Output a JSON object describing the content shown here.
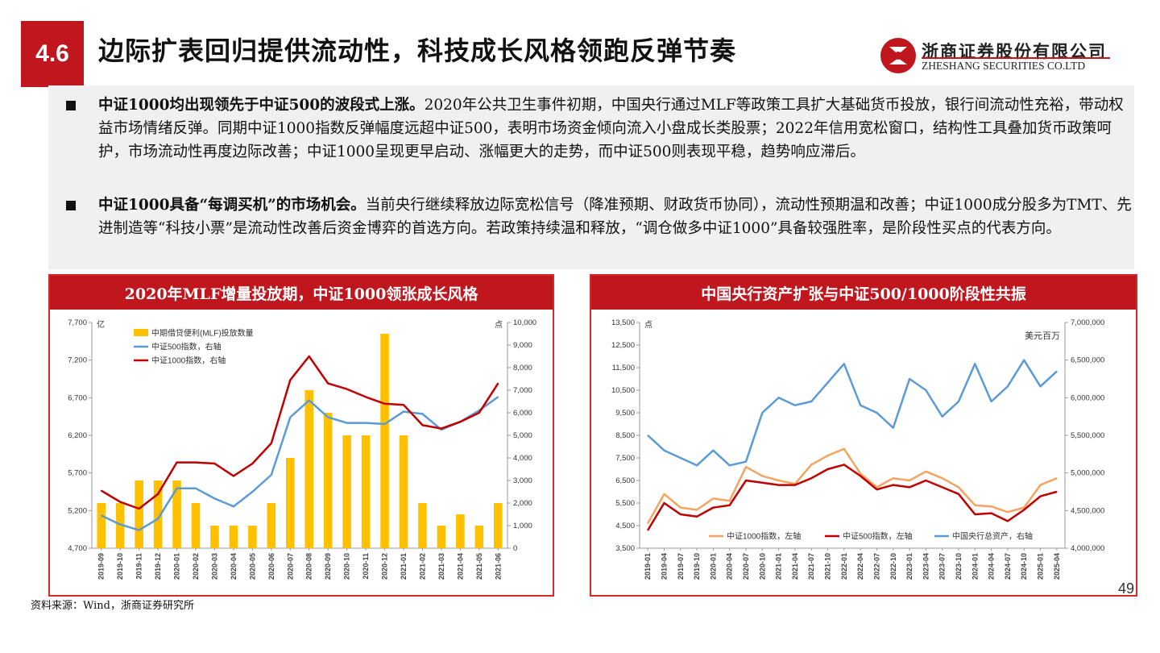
{
  "header": {
    "section_number": "4.6",
    "title": "边际扩表回归提供流动性，科技成长风格领跑反弹节奏",
    "brand_cn": "浙商证券股份有限公司",
    "brand_en": "ZHESHANG SECURITIES CO.LTD"
  },
  "bullets": [
    {
      "lead": "中证1000均出现领先于中证500的波段式上涨。",
      "body": "2020年公共卫生事件初期，中国央行通过MLF等政策工具扩大基础货币投放，银行间流动性充裕，带动权益市场情绪反弹。同期中证1000指数反弹幅度远超中证500，表明市场资金倾向流入小盘成长类股票；2022年信用宽松窗口，结构性工具叠加货币政策呵护，市场流动性再度边际改善；中证1000呈现更早启动、涨幅更大的走势，而中证500则表现平稳，趋势响应滞后。"
    },
    {
      "lead": "中证1000具备“每调买机”的市场机会。",
      "body": "当前央行继续释放边际宽松信号（降准预期、财政货币协同），流动性预期温和改善；中证1000成分股多为TMT、先进制造等“科技小票”是流动性改善后资金博弈的首选方向。若政策持续温和释放，“调仓做多中证1000”具备较强胜率，是阶段性买点的代表方向。"
    }
  ],
  "source_note": "资料来源：Wind，浙商证券研究所",
  "page_number": "49",
  "colors": {
    "accent": "#c0161e",
    "bar": "#ffc000",
    "line_blue": "#5b9bd5",
    "line_red": "#c00000",
    "line_orange": "#f4a460"
  },
  "chart_data": [
    {
      "type": "bar",
      "title": "2020年MLF增量投放期，中证1000领张成长风格",
      "left_unit": "亿",
      "right_unit": "点",
      "categories": [
        "2019-09",
        "2019-10",
        "2019-11",
        "2019-12",
        "2020-01",
        "2020-02",
        "2020-03",
        "2020-04",
        "2020-05",
        "2020-06",
        "2020-07",
        "2020-08",
        "2020-09",
        "2020-10",
        "2020-11",
        "2020-12",
        "2021-01",
        "2021-02",
        "2021-03",
        "2021-04",
        "2021-05",
        "2021-06"
      ],
      "left_ylim": [
        4700,
        7700
      ],
      "left_ticks": [
        "4,700",
        "5,200",
        "5,700",
        "6,200",
        "6,700",
        "7,200",
        "7,700"
      ],
      "right_ylim": [
        0,
        10000
      ],
      "right_ticks": [
        "0",
        "1,000",
        "2,000",
        "3,000",
        "4,000",
        "5,000",
        "6,000",
        "7,000",
        "8,000",
        "9,000",
        "10,000"
      ],
      "series": [
        {
          "name": "中期借贷便利(MLF)投放数量",
          "type": "bar",
          "axis": "left",
          "values": [
            5300,
            5300,
            5600,
            5600,
            5600,
            5300,
            5000,
            5000,
            5000,
            5300,
            5900,
            6800,
            6500,
            6200,
            6200,
            7550,
            6200,
            5300,
            5000,
            5150,
            5000,
            5300
          ]
        },
        {
          "name": "中证500指数，右轴",
          "type": "line",
          "axis": "right",
          "values": [
            1450,
            1050,
            800,
            1300,
            2650,
            2650,
            2200,
            1850,
            2500,
            3250,
            5800,
            6550,
            5800,
            5550,
            5550,
            5500,
            6050,
            5950,
            5250,
            5600,
            6100,
            6700
          ]
        },
        {
          "name": "中证1000指数，右轴",
          "type": "line",
          "axis": "right",
          "values": [
            2550,
            2050,
            1750,
            2400,
            3800,
            3800,
            3750,
            3200,
            3750,
            4650,
            7450,
            8500,
            7300,
            7050,
            6700,
            6400,
            6350,
            5450,
            5300,
            5600,
            6000,
            7300
          ]
        }
      ]
    },
    {
      "type": "line",
      "title": "中国央行资产扩张与中证500/1000阶段性共振",
      "left_unit": "点",
      "right_unit": "美元百万",
      "categories": [
        "2019-01",
        "2019-04",
        "2019-07",
        "2019-10",
        "2020-01",
        "2020-04",
        "2020-07",
        "2020-10",
        "2021-01",
        "2021-04",
        "2021-07",
        "2021-10",
        "2022-01",
        "2022-04",
        "2022-07",
        "2022-10",
        "2023-01",
        "2023-04",
        "2023-07",
        "2023-10",
        "2024-01",
        "2024-04",
        "2024-07",
        "2024-10",
        "2025-01",
        "2025-04"
      ],
      "left_ylim": [
        3500,
        13500
      ],
      "left_ticks": [
        "3,500",
        "4,500",
        "5,500",
        "6,500",
        "7,500",
        "8,500",
        "9,500",
        "10,500",
        "11,500",
        "12,500",
        "13,500"
      ],
      "right_ylim": [
        4000000,
        7000000
      ],
      "right_ticks": [
        "4,000,000",
        "4,500,000",
        "5,000,000",
        "5,500,000",
        "6,000,000",
        "6,500,000",
        "7,000,000"
      ],
      "series": [
        {
          "name": "中证1000指数，左轴",
          "axis": "left",
          "values": [
            4600,
            5900,
            5300,
            5200,
            5700,
            5600,
            7100,
            6700,
            6500,
            6350,
            7200,
            7600,
            7900,
            6800,
            6200,
            6600,
            6500,
            6900,
            6600,
            6200,
            5400,
            5350,
            5100,
            5300,
            6300,
            6600
          ]
        },
        {
          "name": "中证500指数，左轴",
          "axis": "left",
          "values": [
            4300,
            5500,
            5000,
            4900,
            5300,
            5400,
            6500,
            6400,
            6300,
            6300,
            6600,
            7000,
            7200,
            6700,
            6100,
            6300,
            6200,
            6500,
            6200,
            5900,
            5000,
            5050,
            4700,
            5200,
            5800,
            6000
          ]
        },
        {
          "name": "中国央行总资产，右轴",
          "axis": "right",
          "values": [
            5500000,
            5300000,
            5200000,
            5100000,
            5300000,
            5100000,
            5150000,
            5800000,
            6000000,
            5900000,
            5950000,
            6200000,
            6450000,
            5900000,
            5800000,
            5600000,
            6250000,
            6100000,
            5750000,
            5950000,
            6450000,
            5950000,
            6150000,
            6500000,
            6150000,
            6350000
          ]
        }
      ]
    }
  ]
}
